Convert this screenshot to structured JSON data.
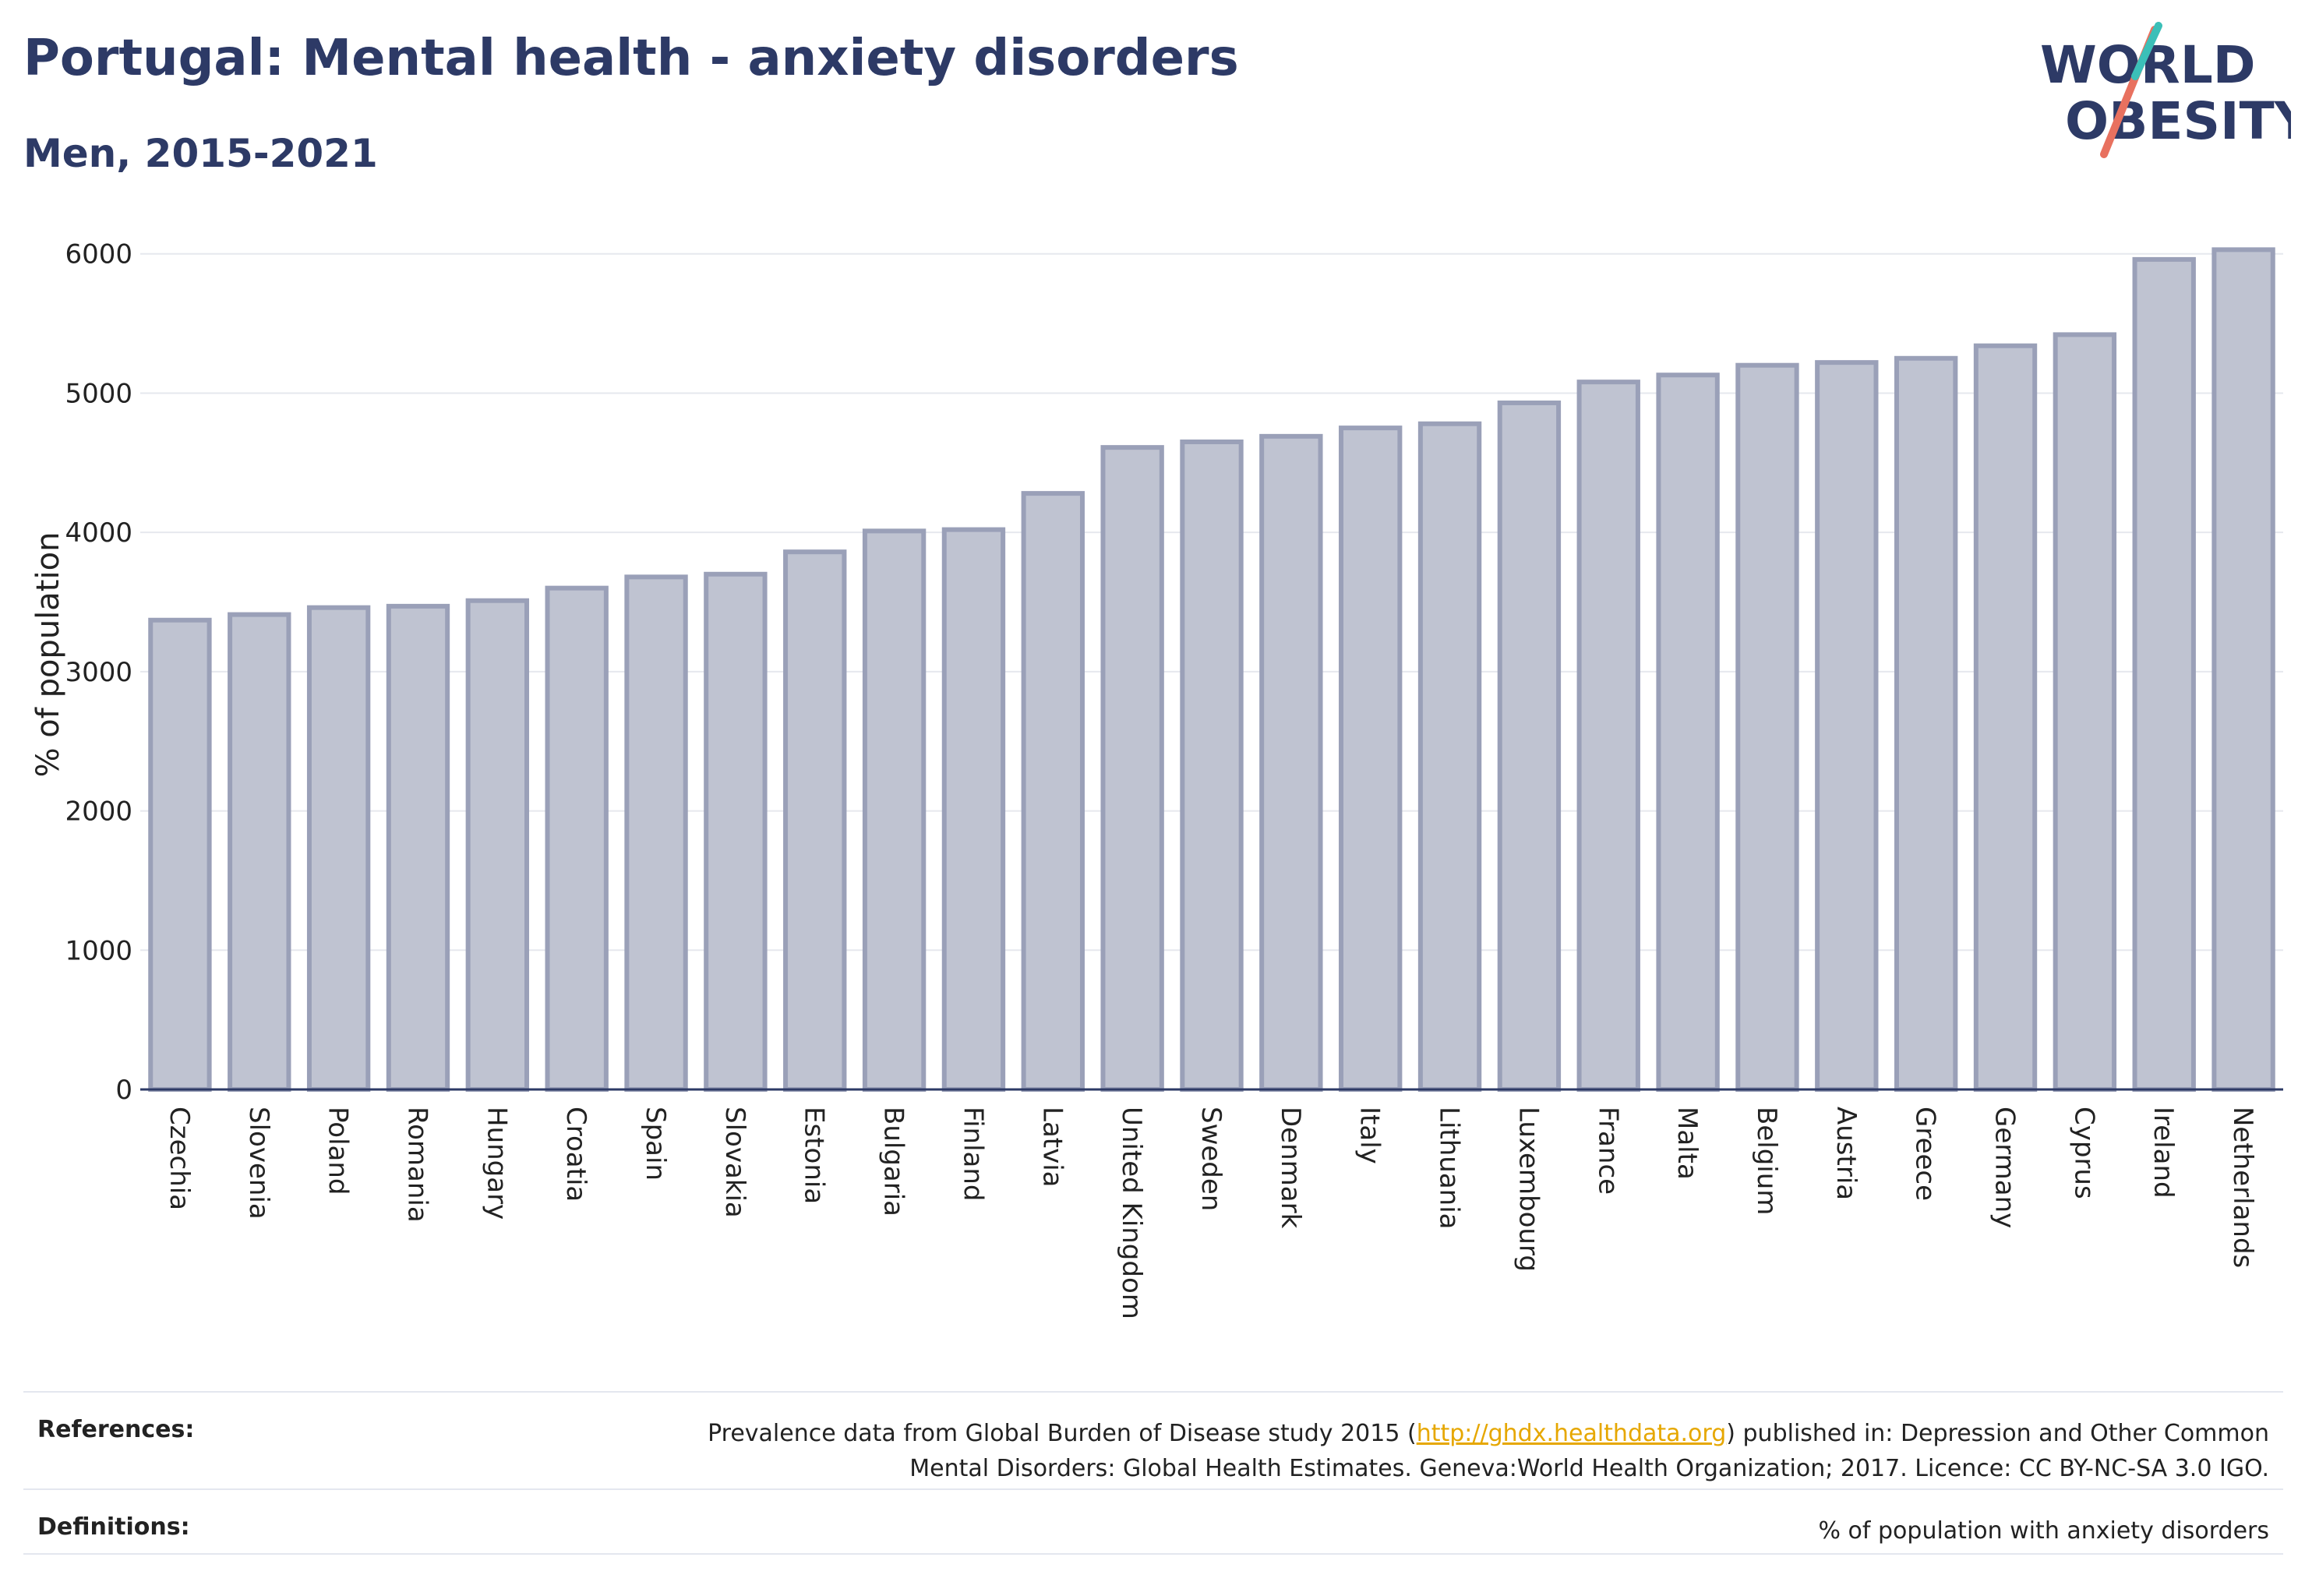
{
  "header": {
    "title": "Portugal: Mental health - anxiety disorders",
    "subtitle": "Men, 2015-2021"
  },
  "logo": {
    "line1": "WORLD",
    "line2": "OBESITY"
  },
  "chart_data": {
    "type": "bar",
    "ylabel": "% of population",
    "xlabel": "",
    "ylim": [
      0,
      6200
    ],
    "yticks": [
      0,
      1000,
      2000,
      3000,
      4000,
      5000,
      6000
    ],
    "grid": true,
    "categories": [
      "Czechia",
      "Slovenia",
      "Poland",
      "Romania",
      "Hungary",
      "Croatia",
      "Spain",
      "Slovakia",
      "Estonia",
      "Bulgaria",
      "Finland",
      "Latvia",
      "United Kingdom",
      "Sweden",
      "Denmark",
      "Italy",
      "Lithuania",
      "Luxembourg",
      "France",
      "Malta",
      "Belgium",
      "Austria",
      "Greece",
      "Germany",
      "Cyprus",
      "Ireland",
      "Netherlands"
    ],
    "values": [
      3370,
      3410,
      3460,
      3470,
      3510,
      3600,
      3680,
      3700,
      3860,
      4010,
      4020,
      4280,
      4610,
      4650,
      4690,
      4750,
      4780,
      4930,
      5080,
      5130,
      5200,
      5220,
      5250,
      5340,
      5420,
      5960,
      6030
    ],
    "colors": {
      "bar_fill": "#bfc3d1",
      "bar_stroke": "#9aa0b8",
      "grid": "#e6e8ee",
      "axis": "#2d3a66"
    }
  },
  "footer": {
    "references_label": "References:",
    "references_pre": "Prevalence data from Global Burden of Disease study 2015 (",
    "references_link": "http://ghdx.healthdata.org",
    "references_post": ") published in: Depression and Other Common",
    "references_line2": "Mental Disorders: Global Health Estimates. Geneva:World Health Organization; 2017. Licence: CC BY-NC-SA 3.0 IGO.",
    "definitions_label": "Definitions:",
    "definitions_text": "% of population with anxiety disorders"
  }
}
